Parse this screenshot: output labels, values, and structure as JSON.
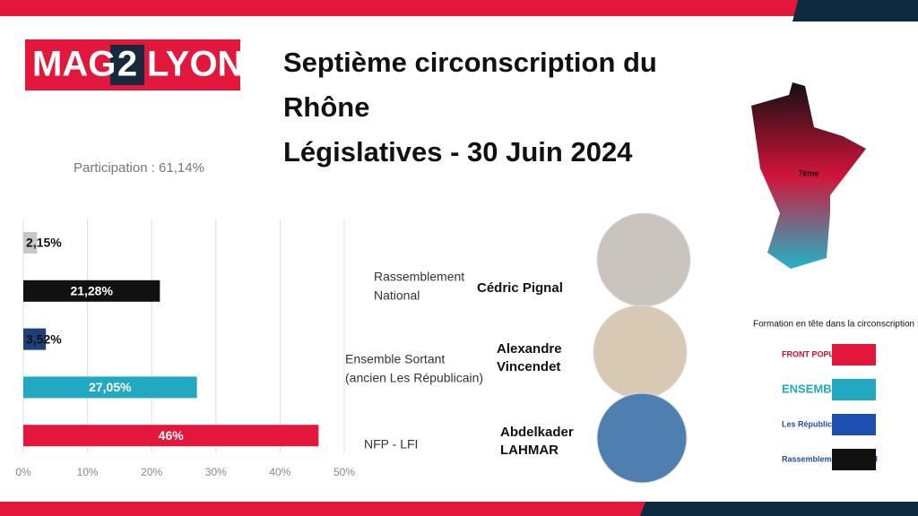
{
  "logo": {
    "parts": [
      "MAG",
      "2",
      "LYON"
    ]
  },
  "title_lines": [
    "Septième circonscription du",
    "Rhône",
    "Législatives - 30 Juin 2024"
  ],
  "participation": "Participation : 61,14%",
  "map_label": "7ème",
  "chart_data": {
    "type": "hbar",
    "categories": [
      null,
      null,
      null,
      null,
      null
    ],
    "values": [
      2.15,
      21.28,
      3.52,
      27.05,
      46
    ],
    "value_labels": [
      "2,15%",
      "21,28%",
      "3,52%",
      "27,05%",
      "46%"
    ],
    "colors": [
      "#c8c8c8",
      "#111111",
      "#1f3f7a",
      "#22a9c2",
      "#e3173c"
    ],
    "xlim": [
      0,
      50
    ],
    "xticks": [
      {
        "value": 0,
        "label": "0%"
      },
      {
        "value": 10,
        "label": "10%"
      },
      {
        "value": 20,
        "label": "20%"
      },
      {
        "value": 30,
        "label": "30%"
      },
      {
        "value": 40,
        "label": "40%"
      },
      {
        "value": 50,
        "label": "50%"
      }
    ],
    "grid": true
  },
  "candidates": [
    {
      "party": [
        "Rassemblement",
        "National"
      ],
      "name": [
        "Cédric Pignal"
      ]
    },
    {
      "party": [
        "Ensemble Sortant",
        "(ancien Les Républicain)"
      ],
      "name": [
        "Alexandre",
        "Vincendet"
      ]
    },
    {
      "party": [
        "NFP - LFI"
      ],
      "name": [
        "Abdelkader",
        "LAHMAR"
      ]
    }
  ],
  "legend": {
    "title": "Formation en tête dans la circonscription :",
    "items": [
      {
        "label": "FRONT POPULAIRE",
        "color": "#e3173c"
      },
      {
        "label": "ENSEMBLE",
        "color": "#22a9c2"
      },
      {
        "label": "Les Républicains",
        "color": "#1d4fb0"
      },
      {
        "label": "Rassemblement National",
        "color": "#111111"
      }
    ]
  }
}
